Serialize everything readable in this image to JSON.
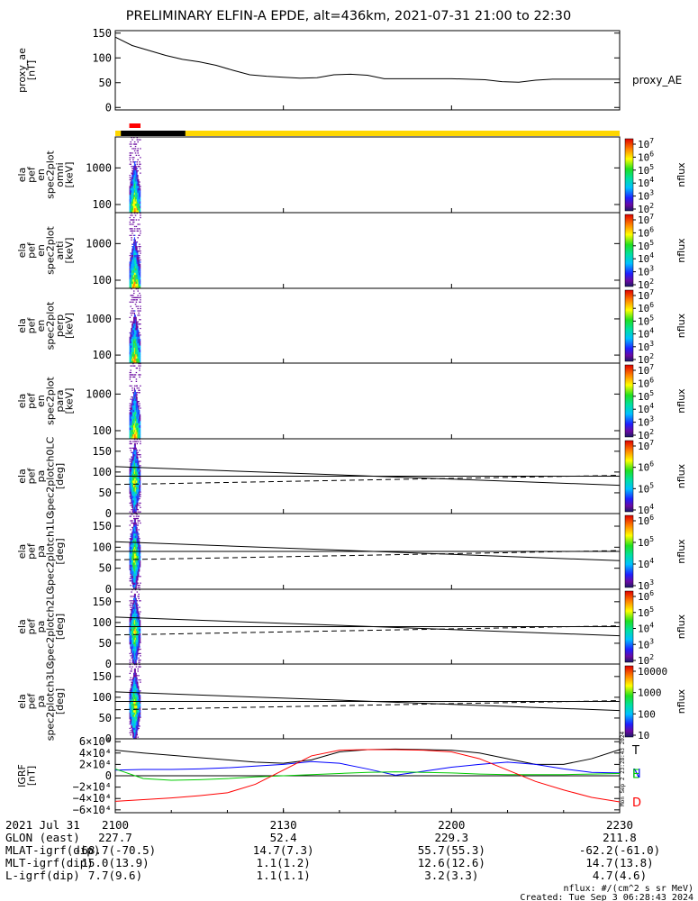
{
  "title": "PRELIMINARY ELFIN-A EPDE, alt=436km, 2021-07-31 21:00 to 22:30",
  "time_axis": {
    "t_start_min": 0,
    "t_end_min": 90,
    "ticks": [
      {
        "t": 0,
        "label": "2100"
      },
      {
        "t": 30,
        "label": "2130"
      },
      {
        "t": 60,
        "label": "2200"
      },
      {
        "t": 90,
        "label": "2230"
      }
    ]
  },
  "ephemeris": {
    "row_labels": [
      "2021 Jul 31",
      "GLON (east)",
      "MLAT-igrf(dip)",
      "MLT-igrf(dip)",
      "L-igrf(dip)"
    ],
    "columns": [
      [
        "2100",
        "227.7",
        "-68.7(-70.5)",
        "15.0(13.9)",
        "7.7(9.6)"
      ],
      [
        "2130",
        "52.4",
        "14.7(7.3)",
        "1.1(1.2)",
        "1.1(1.1)"
      ],
      [
        "2200",
        "229.3",
        "55.7(55.3)",
        "12.6(12.6)",
        "3.2(3.3)"
      ],
      [
        "2230",
        "211.8",
        "-62.2(-61.0)",
        "14.7(13.8)",
        "4.7(4.6)"
      ]
    ]
  },
  "footer": {
    "units_note": "nflux: #/(cm^2 s sr MeV)",
    "created": "Created: Tue Sep  3 06:28:43 2024",
    "side_stamp": "Mon Sep  2 23:28:43 2024"
  },
  "status_bars": {
    "science_bar_color": "#ff0000",
    "science_bar": [
      2.5,
      4.5
    ],
    "day_color": "#ffd700",
    "night_color": "#000000",
    "night_span": [
      1.0,
      12.5
    ]
  },
  "chart_data": [
    {
      "type": "line",
      "ylabel": "proxy_ae\n[nT]",
      "legend": "proxy_AE",
      "ylim": [
        -5,
        155
      ],
      "yticks": [
        0,
        50,
        100,
        150
      ],
      "x": [
        0,
        3,
        6,
        9,
        12,
        15,
        18,
        21,
        24,
        27,
        30,
        33,
        36,
        39,
        42,
        45,
        48,
        51,
        54,
        57,
        60,
        63,
        66,
        69,
        72,
        75,
        78,
        81,
        84,
        87,
        90
      ],
      "values": [
        142,
        125,
        115,
        105,
        97,
        92,
        85,
        75,
        66,
        63,
        61,
        59,
        60,
        66,
        67,
        65,
        58,
        58,
        58,
        58,
        58,
        57,
        56,
        52,
        51,
        55,
        57,
        57,
        57,
        57,
        57
      ]
    },
    {
      "type": "heatmap",
      "ylabel": "ela\npef\nen\nspec2plot\nomni\n[keV]",
      "y_scale": "log",
      "ylim": [
        60,
        7000
      ],
      "yticks": [
        100,
        1000
      ],
      "ytick_labels": [
        "100",
        "1000"
      ],
      "x_span": [
        2.5,
        4.5
      ],
      "colorbar": {
        "label": "nflux",
        "ticks": [
          "10^7",
          "10^6",
          "10^5",
          "10^4",
          "10^3",
          "10^2"
        ]
      }
    },
    {
      "type": "heatmap",
      "ylabel": "ela\npef\nen\nspec2plot\nanti\n[keV]",
      "y_scale": "log",
      "ylim": [
        60,
        7000
      ],
      "yticks": [
        100,
        1000
      ],
      "ytick_labels": [
        "100",
        "1000"
      ],
      "x_span": [
        2.5,
        4.5
      ],
      "colorbar": {
        "label": "nflux",
        "ticks": [
          "10^7",
          "10^6",
          "10^5",
          "10^4",
          "10^3",
          "10^2"
        ]
      }
    },
    {
      "type": "heatmap",
      "ylabel": "ela\npef\nen\nspec2plot\nperp\n[keV]",
      "y_scale": "log",
      "ylim": [
        60,
        7000
      ],
      "yticks": [
        100,
        1000
      ],
      "ytick_labels": [
        "100",
        "1000"
      ],
      "x_span": [
        2.5,
        4.5
      ],
      "colorbar": {
        "label": "nflux",
        "ticks": [
          "10^7",
          "10^6",
          "10^5",
          "10^4",
          "10^3",
          "10^2"
        ]
      }
    },
    {
      "type": "heatmap",
      "ylabel": "ela\npef\nen\nspec2plot\npara\n[keV]",
      "y_scale": "log",
      "ylim": [
        60,
        7000
      ],
      "yticks": [
        100,
        1000
      ],
      "ytick_labels": [
        "100",
        "1000"
      ],
      "x_span": [
        2.5,
        4.5
      ],
      "colorbar": {
        "label": "nflux",
        "ticks": [
          "10^7",
          "10^6",
          "10^5",
          "10^4",
          "10^3",
          "10^2"
        ]
      }
    },
    {
      "type": "heatmap",
      "ylabel": "ela\npef\npa\nspec2plotch0LC\n[deg]",
      "ylim": [
        0,
        180
      ],
      "yticks": [
        0,
        50,
        100,
        150
      ],
      "ytick_labels": [
        "0",
        "50",
        "100",
        "150"
      ],
      "x_span": [
        2.5,
        4.5
      ],
      "lines": {
        "solid": [
          [
            0,
            113
          ],
          [
            90,
            68
          ]
        ],
        "solid2": [
          [
            0,
            90
          ],
          [
            90,
            90
          ]
        ],
        "dashed": [
          [
            0,
            70
          ],
          [
            90,
            92
          ]
        ]
      },
      "colorbar": {
        "label": "nflux",
        "ticks": [
          "10^7",
          "10^6",
          "10^5",
          "10^4"
        ]
      }
    },
    {
      "type": "heatmap",
      "ylabel": "ela\npef\npa\nspec2plotch1LC\n[deg]",
      "ylim": [
        0,
        180
      ],
      "yticks": [
        0,
        50,
        100,
        150
      ],
      "ytick_labels": [
        "0",
        "50",
        "100",
        "150"
      ],
      "x_span": [
        2.5,
        4.5
      ],
      "lines": {
        "solid": [
          [
            0,
            113
          ],
          [
            90,
            68
          ]
        ],
        "solid2": [
          [
            0,
            90
          ],
          [
            90,
            90
          ]
        ],
        "dashed": [
          [
            0,
            70
          ],
          [
            90,
            92
          ]
        ]
      },
      "colorbar": {
        "label": "nflux",
        "ticks": [
          "10^6",
          "10^5",
          "10^4",
          "10^3"
        ]
      }
    },
    {
      "type": "heatmap",
      "ylabel": "ela\npef\npa\nspec2plotch2LC\n[deg]",
      "ylim": [
        0,
        180
      ],
      "yticks": [
        0,
        50,
        100,
        150
      ],
      "ytick_labels": [
        "0",
        "50",
        "100",
        "150"
      ],
      "x_span": [
        2.5,
        4.5
      ],
      "lines": {
        "solid": [
          [
            0,
            113
          ],
          [
            90,
            68
          ]
        ],
        "solid2": [
          [
            0,
            90
          ],
          [
            90,
            90
          ]
        ],
        "dashed": [
          [
            0,
            70
          ],
          [
            90,
            92
          ]
        ]
      },
      "colorbar": {
        "label": "nflux",
        "ticks": [
          "10^6",
          "10^5",
          "10^4",
          "10^3",
          "10^2"
        ]
      }
    },
    {
      "type": "heatmap",
      "ylabel": "ela\npef\npa\nspec2plotch3LC\n[deg]",
      "ylim": [
        0,
        180
      ],
      "yticks": [
        0,
        50,
        100,
        150
      ],
      "ytick_labels": [
        "0",
        "50",
        "100",
        "150"
      ],
      "x_span": [
        2.5,
        4.5
      ],
      "lines": {
        "solid": [
          [
            0,
            113
          ],
          [
            90,
            68
          ]
        ],
        "solid2": [
          [
            0,
            90
          ],
          [
            90,
            90
          ]
        ],
        "dashed": [
          [
            0,
            70
          ],
          [
            90,
            92
          ]
        ]
      },
      "colorbar": {
        "label": "nflux",
        "ticks": [
          "10000",
          "1000",
          "100",
          "10"
        ]
      }
    },
    {
      "type": "line",
      "ylabel": "IGRF\n[nT]",
      "ylim": [
        -65000,
        65000
      ],
      "yticks": [
        -60000,
        -40000,
        -20000,
        0,
        20000,
        40000,
        60000
      ],
      "ytick_labels": [
        "−6×10⁴",
        "−4×10⁴",
        "−2×10⁴",
        "0",
        "2×10⁴",
        "4×10⁴",
        "6×10⁴"
      ],
      "x": [
        0,
        5,
        10,
        15,
        20,
        25,
        30,
        35,
        40,
        45,
        50,
        55,
        60,
        65,
        70,
        75,
        80,
        85,
        90
      ],
      "series": [
        {
          "name": "T",
          "color": "#000000",
          "values": [
            45000,
            40000,
            36000,
            32000,
            28000,
            24000,
            22000,
            28000,
            42000,
            46000,
            47000,
            46000,
            45000,
            40000,
            30000,
            20000,
            20000,
            30000,
            46000
          ]
        },
        {
          "name": "N",
          "color": "#0000ff",
          "values": [
            10000,
            11000,
            11000,
            12000,
            14000,
            17000,
            20000,
            25000,
            22000,
            12000,
            1000,
            8000,
            15000,
            20000,
            24000,
            20000,
            12000,
            6000,
            5000
          ]
        },
        {
          "name": "E",
          "color": "#00cc00",
          "values": [
            12000,
            -5000,
            -8000,
            -7000,
            -5000,
            -2000,
            0,
            2000,
            4000,
            6000,
            7000,
            6000,
            5000,
            3000,
            2000,
            2000,
            2000,
            3000,
            4000
          ]
        },
        {
          "name": "D",
          "color": "#ff0000",
          "values": [
            -45000,
            -42000,
            -39000,
            -35000,
            -30000,
            -15000,
            10000,
            35000,
            45000,
            46000,
            46000,
            45000,
            42000,
            30000,
            10000,
            -10000,
            -25000,
            -38000,
            -46000
          ]
        }
      ]
    }
  ]
}
